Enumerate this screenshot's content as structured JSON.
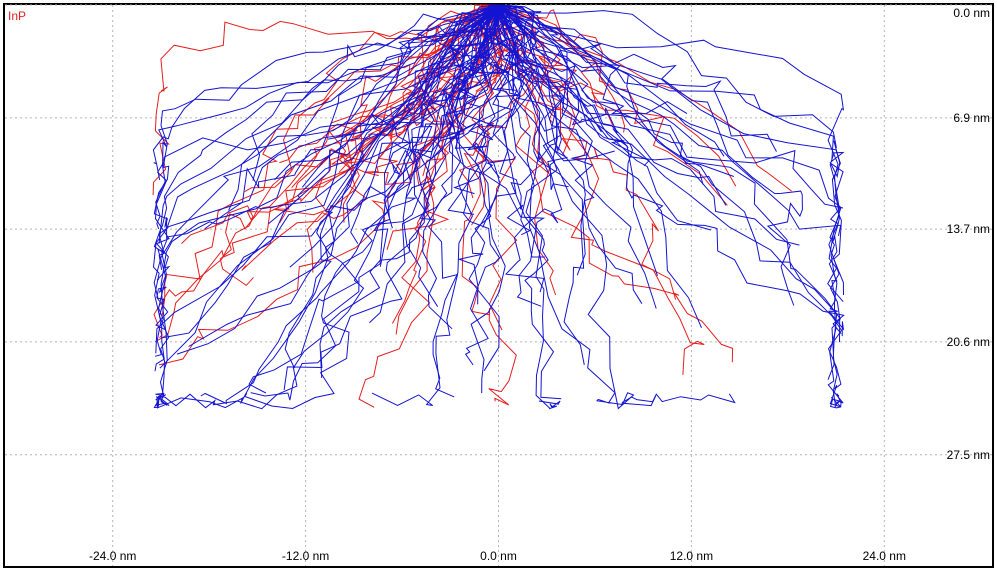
{
  "chart_data": {
    "type": "scatter",
    "title": "",
    "material_label": "InP",
    "xlabel": "",
    "ylabel": "",
    "x_unit": "nm",
    "y_unit": "nm",
    "xlim": [
      -30.7,
      30.7
    ],
    "ylim": [
      0,
      34.3
    ],
    "y_inverted": true,
    "grid": true,
    "x_ticks": [
      {
        "value": -24.0,
        "label": "-24.0 nm"
      },
      {
        "value": -12.0,
        "label": "-12.0 nm"
      },
      {
        "value": 0.0,
        "label": "0.0 nm"
      },
      {
        "value": 12.0,
        "label": "12.0 nm"
      },
      {
        "value": 24.0,
        "label": "24.0 nm"
      }
    ],
    "y_ticks": [
      {
        "value": 0.0,
        "label": "0.0 nm"
      },
      {
        "value": 6.9,
        "label": "6.9 nm"
      },
      {
        "value": 13.7,
        "label": "13.7 nm"
      },
      {
        "value": 20.6,
        "label": "20.6 nm"
      },
      {
        "value": 27.5,
        "label": "27.5 nm"
      }
    ],
    "series_colors": {
      "primary": "#1414d2",
      "recoil": "#e61e1e"
    },
    "trajectory_styles": {
      "primary": {
        "count": 95,
        "lateral_spread_nm": 9.5,
        "depth_spread_nm": 6.0
      },
      "recoil": {
        "count": 45,
        "lateral_spread_nm": 6.0,
        "depth_spread_nm": 2.5
      }
    }
  }
}
